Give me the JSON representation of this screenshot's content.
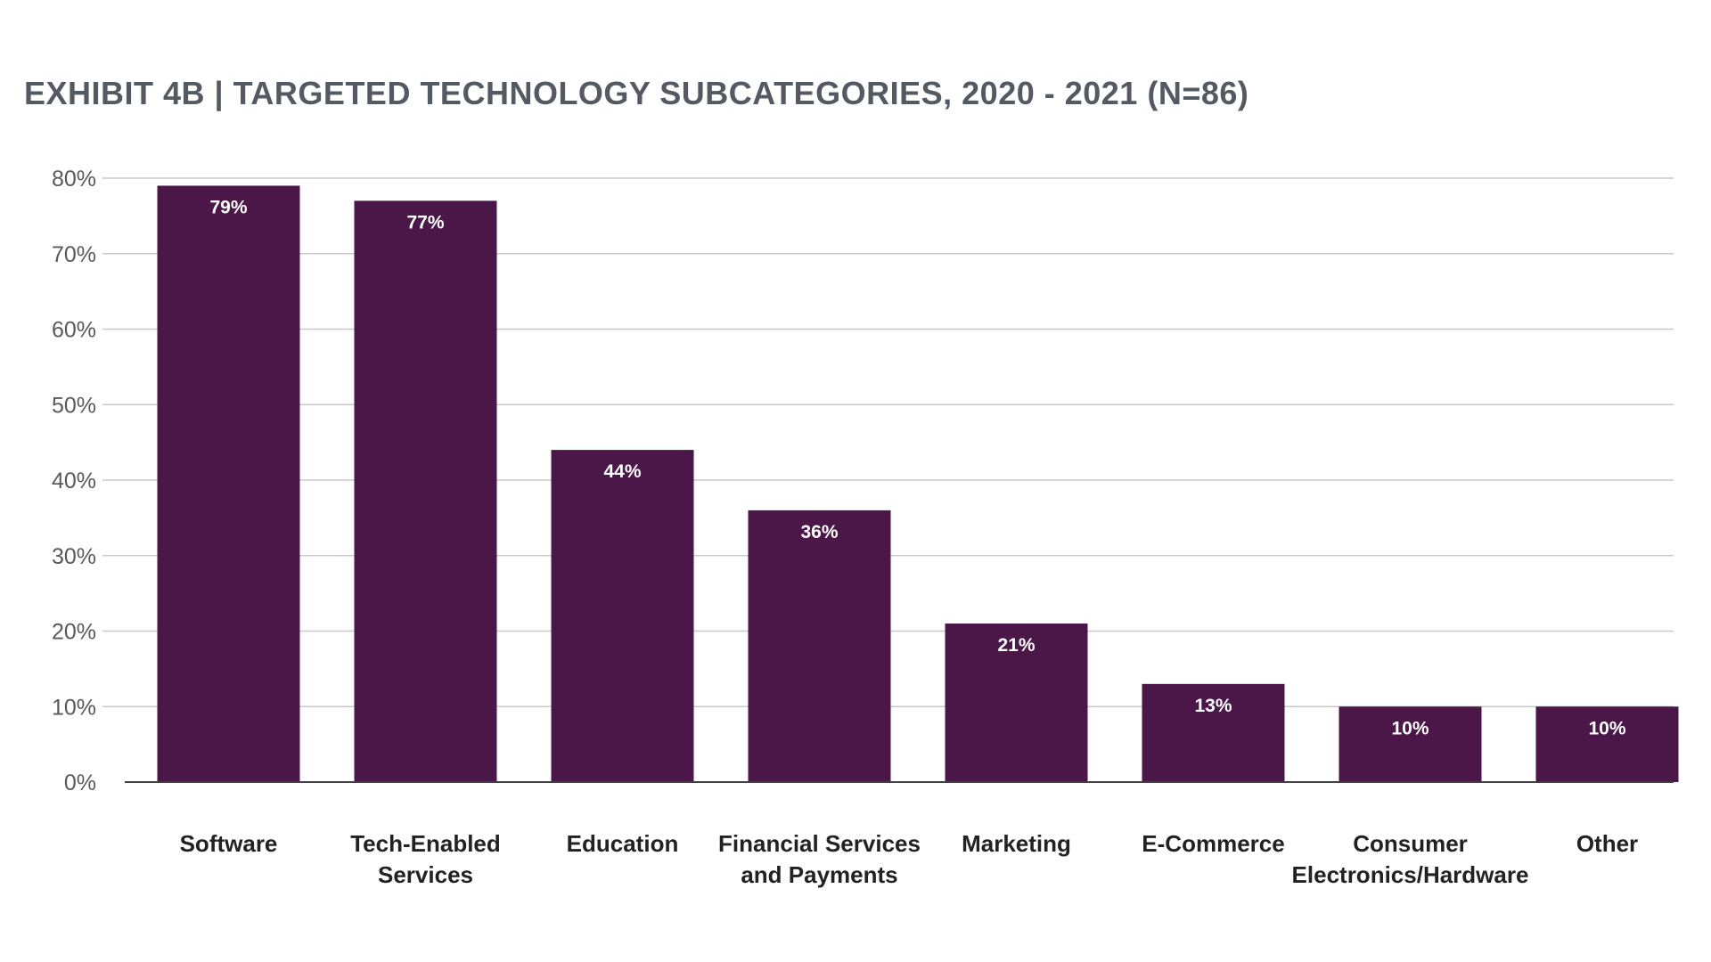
{
  "chart_data": {
    "type": "bar",
    "title": "EXHIBIT 4B | TARGETED TECHNOLOGY SUBCATEGORIES, 2020 - 2021 (N=86)",
    "xlabel": "",
    "ylabel": "",
    "ylim": [
      0,
      80
    ],
    "yticks": [
      0,
      10,
      20,
      30,
      40,
      50,
      60,
      70,
      80
    ],
    "ytick_labels": [
      "0%",
      "10%",
      "20%",
      "30%",
      "40%",
      "50%",
      "60%",
      "70%",
      "80%"
    ],
    "grid": true,
    "legend": "none",
    "categories": [
      [
        "Software"
      ],
      [
        "Tech-Enabled",
        "Services"
      ],
      [
        "Education"
      ],
      [
        "Financial Services",
        "and Payments"
      ],
      [
        "Marketing"
      ],
      [
        "E-Commerce"
      ],
      [
        "Consumer",
        "Electronics/Hardware"
      ],
      [
        "Other"
      ]
    ],
    "values": [
      79,
      77,
      44,
      36,
      21,
      13,
      10,
      10
    ],
    "data_labels": [
      "79%",
      "77%",
      "44%",
      "36%",
      "21%",
      "13%",
      "10%",
      "10%"
    ],
    "bar_color": "#4b1748",
    "grid_color": "#c8c8c8",
    "axis_color": "#404040"
  }
}
